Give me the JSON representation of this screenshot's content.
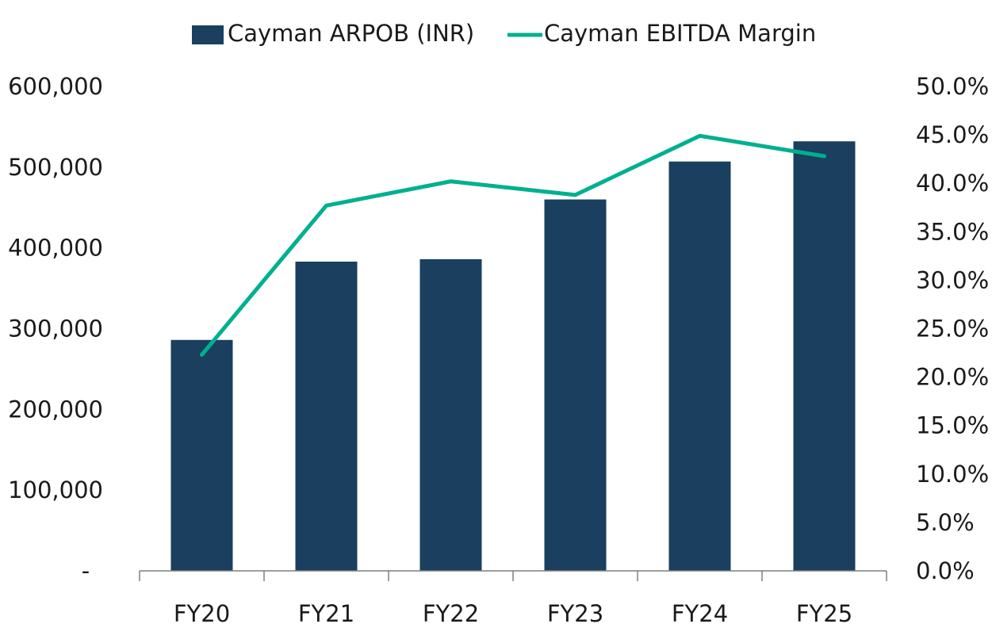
{
  "chart_data": {
    "type": "bar",
    "categories": [
      "FY20",
      "FY21",
      "FY22",
      "FY23",
      "FY24",
      "FY25"
    ],
    "series": [
      {
        "name": "Cayman ARPOB (INR)",
        "type": "bar",
        "axis": "left",
        "color": "#1b3f5e",
        "values": [
          286000,
          383000,
          386000,
          460000,
          507000,
          532000
        ]
      },
      {
        "name": "Cayman EBITDA Margin",
        "type": "line",
        "axis": "right",
        "color": "#00b08f",
        "values": [
          22.3,
          37.7,
          40.2,
          38.8,
          44.9,
          42.8
        ]
      }
    ],
    "y_left": {
      "ylim": [
        0,
        600000
      ],
      "ticks": [
        {
          "value": 0,
          "label": "-"
        },
        {
          "value": 100000,
          "label": "100,000"
        },
        {
          "value": 200000,
          "label": "200,000"
        },
        {
          "value": 300000,
          "label": "300,000"
        },
        {
          "value": 400000,
          "label": "400,000"
        },
        {
          "value": 500000,
          "label": "500,000"
        },
        {
          "value": 600000,
          "label": "600,000"
        }
      ]
    },
    "y_right": {
      "ylim": [
        0,
        50
      ],
      "ticks": [
        {
          "value": 0,
          "label": "0.0%"
        },
        {
          "value": 5,
          "label": "5.0%"
        },
        {
          "value": 10,
          "label": "10.0%"
        },
        {
          "value": 15,
          "label": "15.0%"
        },
        {
          "value": 20,
          "label": "20.0%"
        },
        {
          "value": 25,
          "label": "25.0%"
        },
        {
          "value": 30,
          "label": "30.0%"
        },
        {
          "value": 35,
          "label": "35.0%"
        },
        {
          "value": 40,
          "label": "40.0%"
        },
        {
          "value": 45,
          "label": "45.0%"
        },
        {
          "value": 50,
          "label": "50.0%"
        }
      ]
    },
    "title": "",
    "xlabel": "",
    "ylabel": "",
    "grid": false,
    "legend": "top-center"
  }
}
